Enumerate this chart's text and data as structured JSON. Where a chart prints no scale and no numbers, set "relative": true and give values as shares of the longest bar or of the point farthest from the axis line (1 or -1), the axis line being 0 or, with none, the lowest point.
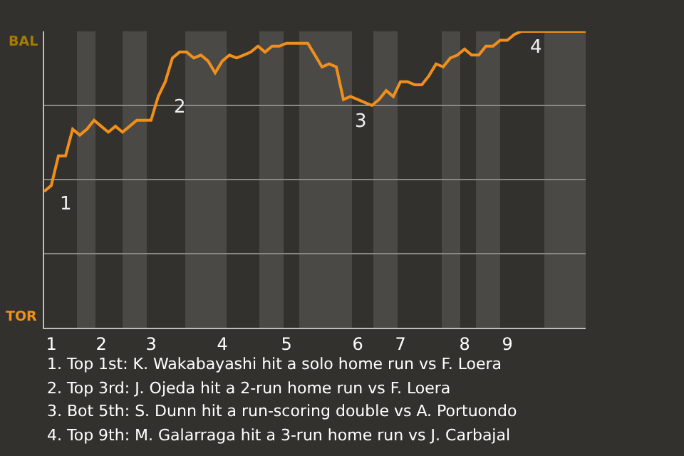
{
  "chart_data": {
    "type": "line",
    "relative": true,
    "categories": [
      null,
      "1",
      null,
      null,
      null,
      null,
      null,
      null,
      "2",
      null,
      null,
      null,
      null,
      null,
      null,
      "3",
      null,
      null,
      null,
      null,
      null,
      null,
      null,
      null,
      null,
      "4",
      null,
      null,
      null,
      null,
      null,
      null,
      null,
      null,
      "5",
      null,
      null,
      null,
      null,
      null,
      null,
      null,
      null,
      null,
      "6",
      null,
      null,
      null,
      null,
      null,
      "7",
      null,
      null,
      null,
      null,
      null,
      null,
      null,
      null,
      "8",
      null,
      null,
      null,
      null,
      null,
      "9",
      null,
      null,
      null,
      null,
      null,
      null,
      null,
      null,
      null,
      null,
      null
    ],
    "series": [
      {
        "color": "#f0901a",
        "values": [
          0.46,
          0.48,
          0.58,
          0.58,
          0.67,
          0.65,
          0.67,
          0.7,
          0.68,
          0.66,
          0.68,
          0.66,
          0.68,
          0.7,
          0.7,
          0.7,
          0.78,
          0.83,
          0.91,
          0.93,
          0.93,
          0.91,
          0.92,
          0.9,
          0.86,
          0.9,
          0.92,
          0.91,
          0.92,
          0.93,
          0.95,
          0.93,
          0.95,
          0.95,
          0.96,
          0.96,
          0.96,
          0.96,
          0.92,
          0.88,
          0.89,
          0.88,
          0.77,
          0.78,
          0.77,
          0.76,
          0.75,
          0.77,
          0.8,
          0.78,
          0.83,
          0.83,
          0.82,
          0.82,
          0.85,
          0.89,
          0.88,
          0.91,
          0.92,
          0.94,
          0.92,
          0.92,
          0.95,
          0.95,
          0.97,
          0.97,
          0.99,
          1,
          1,
          1,
          1,
          1,
          1,
          1,
          1,
          1,
          1
        ]
      }
    ],
    "grid": "y",
    "marker": "none",
    "line_style": "solid",
    "annotations": [
      "BAL",
      "TOR",
      "1",
      "2",
      "3",
      "4",
      "1. Top 1st: K. Wakabayashi hit a solo home run vs F. Loera",
      "2. Top 3rd: J. Ojeda hit a 2-run home run vs F. Loera",
      "3. Bot 5th: S. Dunn hit a run-scoring double vs A. Portuondo",
      "4. Top 9th: M. Galarraga hit a 3-run home run vs J. Carbajal"
    ]
  }
}
